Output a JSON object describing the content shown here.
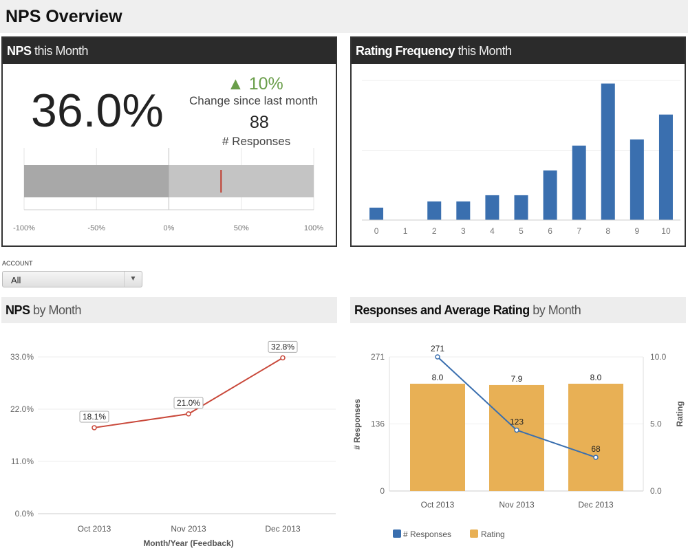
{
  "page": {
    "title": "NPS Overview"
  },
  "nps_panel": {
    "title_bold": "NPS",
    "title_light": "this Month",
    "value": "36.0%",
    "change": "10%",
    "change_icon": "triangle-up-icon",
    "change_label": "Change since last month",
    "responses": "88",
    "responses_label": "# Responses",
    "colors": {
      "change": "#6a9e4a",
      "marker": "#c0392b"
    }
  },
  "freq_panel": {
    "title_bold": "Rating Frequency",
    "title_light": "this Month"
  },
  "filter": {
    "label": "ACCOUNT",
    "value": "All"
  },
  "nps_month": {
    "title_bold": "NPS",
    "title_light": "by Month"
  },
  "resp_month": {
    "title_bold": "Responses and Average Rating",
    "title_light": "by Month"
  },
  "chart_data": [
    {
      "type": "bullet",
      "value": 36.0,
      "xlim": [
        -100,
        100
      ],
      "ticks": [
        "-100%",
        "-50%",
        "0%",
        "50%",
        "100%"
      ],
      "ranges": [
        {
          "from": -100,
          "to": 0,
          "color": "#a8a8a8"
        },
        {
          "from": 0,
          "to": 100,
          "color": "#c4c4c4"
        }
      ],
      "marker_color": "#c0392b"
    },
    {
      "type": "bar",
      "categories": [
        "0",
        "1",
        "2",
        "3",
        "4",
        "5",
        "6",
        "7",
        "8",
        "9",
        "10"
      ],
      "values": [
        2,
        0,
        3,
        3,
        4,
        4,
        8,
        12,
        22,
        13,
        17
      ],
      "ylim": [
        0,
        22.5
      ],
      "grid": true,
      "color": "#3a6faf"
    },
    {
      "type": "line",
      "categories": [
        "Oct 2013",
        "Nov 2013",
        "Dec 2013"
      ],
      "values": [
        18.1,
        21.0,
        32.8
      ],
      "data_labels": [
        "18.1%",
        "21.0%",
        "32.8%"
      ],
      "ylim": [
        0,
        33
      ],
      "yticks": [
        "0.0%",
        "11.0%",
        "22.0%",
        "33.0%"
      ],
      "xlabel": "Month/Year (Feedback)",
      "grid": true,
      "color": "#c9483a"
    },
    {
      "type": "bar+line",
      "categories": [
        "Oct 2013",
        "Nov 2013",
        "Dec 2013"
      ],
      "series": [
        {
          "name": "# Responses",
          "type": "line",
          "axis": "left",
          "values": [
            271,
            123,
            68
          ],
          "color": "#3a6faf"
        },
        {
          "name": "Rating",
          "type": "bar",
          "axis": "right",
          "values": [
            8.0,
            7.9,
            8.0
          ],
          "labels": [
            "8.0",
            "7.9",
            "8.0"
          ],
          "color": "#e8b055"
        }
      ],
      "ylabel": "# Responses",
      "y2label": "Rating",
      "ylim": [
        0,
        271
      ],
      "yticks": [
        "0",
        "136",
        "271"
      ],
      "y2lim": [
        0,
        10
      ],
      "y2ticks": [
        "0.0",
        "5.0",
        "10.0"
      ],
      "legend": "bottom"
    }
  ]
}
